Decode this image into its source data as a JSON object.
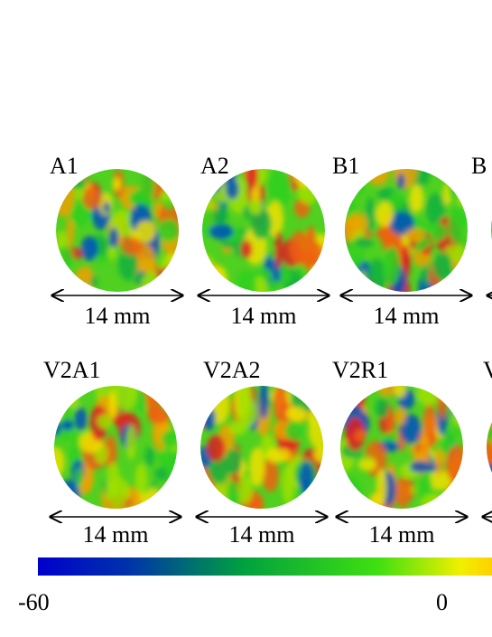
{
  "figure": {
    "rows": [
      {
        "samples": [
          {
            "label": "A1",
            "scale": "14 mm"
          },
          {
            "label": "A2",
            "scale": "14 mm"
          },
          {
            "label": "B1",
            "scale": "14 mm"
          },
          {
            "label": "B"
          }
        ]
      },
      {
        "samples": [
          {
            "label": "V2A1",
            "scale": "14 mm"
          },
          {
            "label": "V2A2",
            "scale": "14 mm"
          },
          {
            "label": "V2R1",
            "scale": "14 mm"
          },
          {
            "label": "V"
          }
        ]
      }
    ],
    "colorbar": {
      "labels": [
        "-60",
        "0"
      ]
    }
  }
}
